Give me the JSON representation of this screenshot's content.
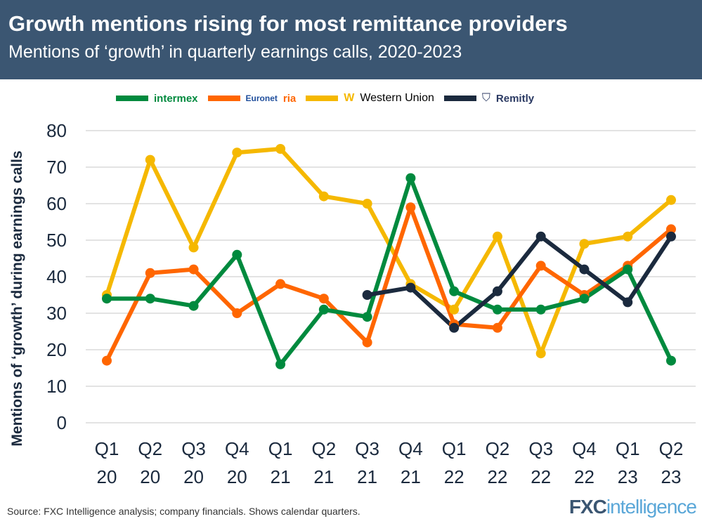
{
  "header": {
    "title": "Growth mentions rising for most remittance providers",
    "subtitle": "Mentions of ‘growth’ in quarterly earnings calls, 2020-2023"
  },
  "footer": {
    "source": "Source: FXC Intelligence analysis; company financials. Shows calendar quarters.",
    "brand_a": "FXC",
    "brand_b": "intelligence"
  },
  "chart_data": {
    "type": "line",
    "title": "Growth mentions rising for most remittance providers",
    "subtitle": "Mentions of ‘growth’ in quarterly earnings calls, 2020-2023",
    "ylabel": "Mentions of ‘growth’ during earnings calls",
    "xlabel": "",
    "ylim": [
      0,
      80
    ],
    "yticks": [
      0,
      10,
      20,
      30,
      40,
      50,
      60,
      70,
      80
    ],
    "grid": true,
    "legend_placement": "top",
    "categories": [
      [
        "Q1",
        "20"
      ],
      [
        "Q2",
        "20"
      ],
      [
        "Q3",
        "20"
      ],
      [
        "Q4",
        "20"
      ],
      [
        "Q1",
        "21"
      ],
      [
        "Q2",
        "21"
      ],
      [
        "Q3",
        "21"
      ],
      [
        "Q4",
        "21"
      ],
      [
        "Q1",
        "22"
      ],
      [
        "Q2",
        "22"
      ],
      [
        "Q3",
        "22"
      ],
      [
        "Q4",
        "22"
      ],
      [
        "Q1",
        "23"
      ],
      [
        "Q2",
        "23"
      ]
    ],
    "series": [
      {
        "name": "Western Union",
        "legend_logo": "Western Union",
        "color": "#f5b800",
        "values": [
          35,
          72,
          48,
          74,
          75,
          62,
          60,
          38,
          31,
          51,
          19,
          49,
          51,
          61
        ]
      },
      {
        "name": "Euronet / Ria / Xe",
        "legend_logo": "Euronet ria xe",
        "color": "#ff6600",
        "values": [
          17,
          41,
          42,
          30,
          38,
          34,
          22,
          59,
          27,
          26,
          43,
          35,
          43,
          53
        ]
      },
      {
        "name": "Intermex",
        "legend_logo": "intermex",
        "color": "#008a3e",
        "values": [
          34,
          34,
          32,
          46,
          16,
          31,
          29,
          67,
          36,
          31,
          31,
          34,
          42,
          17
        ]
      },
      {
        "name": "Remitly",
        "legend_logo": "Remitly",
        "color": "#1b2a3e",
        "values": [
          null,
          null,
          null,
          null,
          null,
          null,
          35,
          37,
          26,
          36,
          51,
          42,
          33,
          51
        ]
      }
    ],
    "legend_order": [
      2,
      1,
      0,
      3
    ]
  }
}
